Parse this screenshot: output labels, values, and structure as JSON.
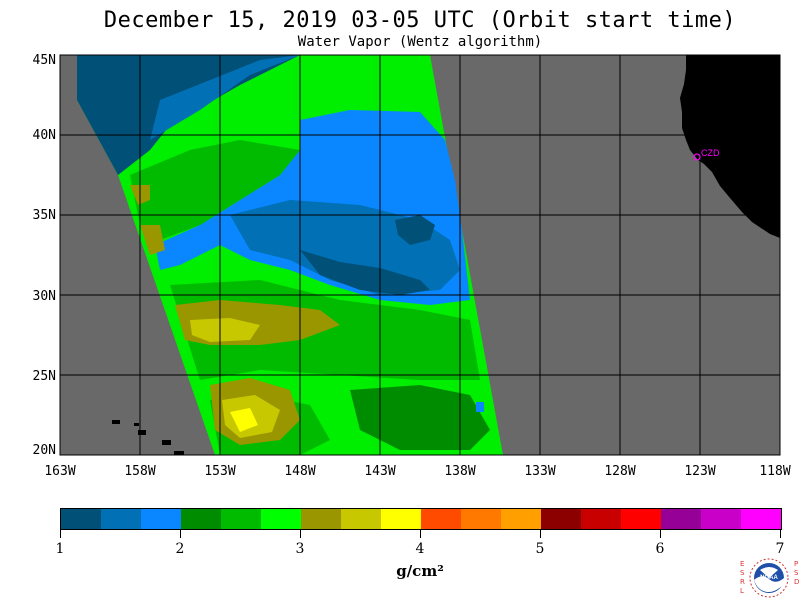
{
  "title": "December 15, 2019  03-05 UTC  (Orbit start time)",
  "subtitle": "Water Vapor (Wentz algorithm)",
  "map": {
    "lat_labels": [
      "45N",
      "40N",
      "35N",
      "30N",
      "25N",
      "20N"
    ],
    "lon_labels": [
      "163W",
      "158W",
      "153W",
      "148W",
      "143W",
      "138W",
      "133W",
      "128W",
      "123W",
      "118W"
    ],
    "station_label": "CZD",
    "colors": {
      "no_data": "#696969",
      "land": "#000000",
      "grid": "#000000",
      "station": "#ff00ff"
    }
  },
  "colorbar": {
    "colors": [
      "#015078",
      "#0170b4",
      "#0a87ff",
      "#008c00",
      "#00bb00",
      "#00ff00",
      "#9a9600",
      "#c8c800",
      "#ffff00",
      "#ff4b00",
      "#ff7800",
      "#ffa000",
      "#8c0000",
      "#c80000",
      "#ff0000",
      "#960096",
      "#c800c8",
      "#ff00ff"
    ],
    "labels": [
      "1",
      "2",
      "3",
      "4",
      "5",
      "6",
      "7"
    ],
    "units": "g/cm²"
  },
  "logo": {
    "left_letters": "ESRL",
    "right_letters": "PSD",
    "name": "NOAA"
  }
}
